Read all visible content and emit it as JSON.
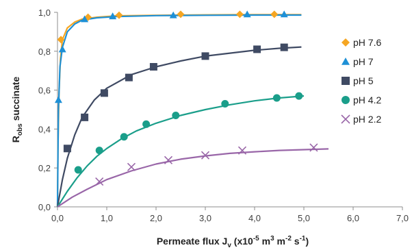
{
  "chart_data": {
    "type": "scatter",
    "xlabel": {
      "main": "Permeate flux J",
      "sub": "v",
      "tail": " (x10",
      "exp1": "-5",
      "mid1": " m",
      "exp2": "3",
      "mid2": " m",
      "exp3": "-2",
      "mid3": " s",
      "exp4": "-1",
      "end": ")"
    },
    "ylabel": {
      "main": "R",
      "sub": "obs",
      "tail": " succinate"
    },
    "xlim": [
      0,
      7
    ],
    "ylim": [
      0,
      1
    ],
    "x_ticks": [
      "0,0",
      "1,0",
      "2,0",
      "3,0",
      "4,0",
      "5,0",
      "6,0",
      "7,0"
    ],
    "y_ticks": [
      "0,0",
      "0,2",
      "0,4",
      "0,6",
      "0,8",
      "1,0"
    ],
    "grid": false,
    "legend_position": "right",
    "series": [
      {
        "name": "pH 7.6",
        "color": "#F5A623",
        "marker": "diamond",
        "points": [
          [
            0.07,
            0.86
          ],
          [
            0.62,
            0.975
          ],
          [
            1.25,
            0.985
          ],
          [
            2.5,
            0.99
          ],
          [
            3.7,
            0.99
          ],
          [
            4.4,
            0.99
          ]
        ],
        "curve": [
          [
            0,
            0
          ],
          [
            0.01,
            0.3
          ],
          [
            0.03,
            0.58
          ],
          [
            0.06,
            0.76
          ],
          [
            0.1,
            0.86
          ],
          [
            0.2,
            0.92
          ],
          [
            0.35,
            0.95
          ],
          [
            0.5,
            0.965
          ],
          [
            0.8,
            0.975
          ],
          [
            1.2,
            0.982
          ],
          [
            2,
            0.985
          ],
          [
            3,
            0.987
          ],
          [
            4,
            0.988
          ],
          [
            4.95,
            0.988
          ]
        ]
      },
      {
        "name": "pH 7",
        "color": "#1E90D6",
        "marker": "triangle",
        "points": [
          [
            0.02,
            0.55
          ],
          [
            0.1,
            0.81
          ],
          [
            0.55,
            0.965
          ],
          [
            1.12,
            0.98
          ],
          [
            2.35,
            0.985
          ],
          [
            3.85,
            0.99
          ],
          [
            4.6,
            0.99
          ]
        ],
        "curve": [
          [
            0,
            0
          ],
          [
            0.01,
            0.28
          ],
          [
            0.02,
            0.5
          ],
          [
            0.05,
            0.72
          ],
          [
            0.1,
            0.82
          ],
          [
            0.2,
            0.9
          ],
          [
            0.35,
            0.94
          ],
          [
            0.5,
            0.96
          ],
          [
            0.8,
            0.972
          ],
          [
            1.2,
            0.978
          ],
          [
            2,
            0.983
          ],
          [
            3,
            0.985
          ],
          [
            4,
            0.986
          ],
          [
            4.95,
            0.986
          ]
        ]
      },
      {
        "name": "pH 5",
        "color": "#3F4A63",
        "marker": "square",
        "points": [
          [
            0.2,
            0.3
          ],
          [
            0.55,
            0.46
          ],
          [
            0.95,
            0.585
          ],
          [
            1.45,
            0.665
          ],
          [
            1.95,
            0.72
          ],
          [
            3.0,
            0.775
          ],
          [
            4.05,
            0.81
          ],
          [
            4.6,
            0.82
          ]
        ],
        "curve": [
          [
            0,
            0
          ],
          [
            0.1,
            0.14
          ],
          [
            0.2,
            0.25
          ],
          [
            0.35,
            0.37
          ],
          [
            0.5,
            0.46
          ],
          [
            0.75,
            0.55
          ],
          [
            1.0,
            0.61
          ],
          [
            1.5,
            0.68
          ],
          [
            2.0,
            0.72
          ],
          [
            2.5,
            0.75
          ],
          [
            3.0,
            0.775
          ],
          [
            3.5,
            0.79
          ],
          [
            4.0,
            0.805
          ],
          [
            4.5,
            0.815
          ],
          [
            4.95,
            0.822
          ]
        ]
      },
      {
        "name": "pH 4.2",
        "color": "#1A9E8A",
        "marker": "circle",
        "points": [
          [
            0.42,
            0.19
          ],
          [
            0.85,
            0.29
          ],
          [
            1.35,
            0.36
          ],
          [
            1.8,
            0.425
          ],
          [
            2.4,
            0.47
          ],
          [
            3.4,
            0.53
          ],
          [
            4.45,
            0.56
          ],
          [
            4.9,
            0.57
          ]
        ],
        "curve": [
          [
            0,
            0
          ],
          [
            0.2,
            0.08
          ],
          [
            0.4,
            0.15
          ],
          [
            0.6,
            0.21
          ],
          [
            0.8,
            0.26
          ],
          [
            1.0,
            0.3
          ],
          [
            1.3,
            0.35
          ],
          [
            1.6,
            0.39
          ],
          [
            2.0,
            0.43
          ],
          [
            2.5,
            0.47
          ],
          [
            3.0,
            0.5
          ],
          [
            3.5,
            0.525
          ],
          [
            4.0,
            0.545
          ],
          [
            4.5,
            0.56
          ],
          [
            5.0,
            0.57
          ]
        ]
      },
      {
        "name": "pH 2.2",
        "color": "#9966A8",
        "marker": "x",
        "points": [
          [
            0.85,
            0.13
          ],
          [
            1.5,
            0.205
          ],
          [
            2.25,
            0.24
          ],
          [
            3.0,
            0.265
          ],
          [
            3.75,
            0.29
          ],
          [
            5.2,
            0.305
          ]
        ],
        "curve": [
          [
            0,
            0
          ],
          [
            0.3,
            0.05
          ],
          [
            0.6,
            0.09
          ],
          [
            1.0,
            0.14
          ],
          [
            1.5,
            0.185
          ],
          [
            2.0,
            0.22
          ],
          [
            2.5,
            0.245
          ],
          [
            3.0,
            0.262
          ],
          [
            3.5,
            0.275
          ],
          [
            4.0,
            0.283
          ],
          [
            4.5,
            0.29
          ],
          [
            5.0,
            0.294
          ],
          [
            5.5,
            0.298
          ]
        ]
      }
    ]
  }
}
